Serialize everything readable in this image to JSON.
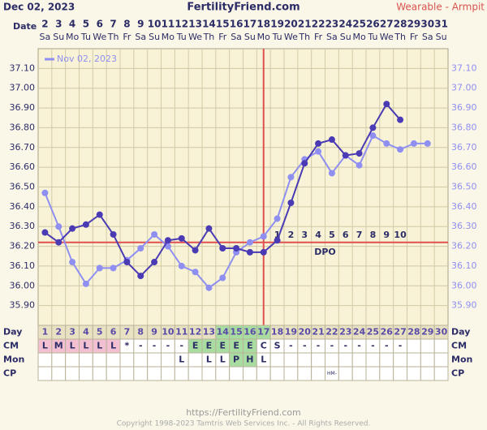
{
  "chart_data": {
    "type": "line",
    "title": "FertilityFriend.com",
    "date_label": "Dec 02, 2023",
    "method": "Wearable - Armpit",
    "x_label": "Date",
    "dates": [
      2,
      3,
      4,
      5,
      6,
      7,
      8,
      9,
      10,
      11,
      12,
      13,
      14,
      15,
      16,
      17,
      18,
      19,
      20,
      21,
      22,
      23,
      24,
      25,
      26,
      27,
      28,
      29,
      30,
      31
    ],
    "weekdays": [
      "Sa",
      "Su",
      "Mo",
      "Tu",
      "We",
      "Th",
      "Fr",
      "Sa",
      "Su",
      "Mo",
      "Tu",
      "We",
      "Th",
      "Fr",
      "Sa",
      "Su",
      "Mo",
      "Tu",
      "We",
      "Th",
      "Fr",
      "Sa",
      "Su",
      "Mo",
      "Tu",
      "We",
      "Th",
      "Fr",
      "Sa",
      "Su"
    ],
    "categories": [
      1,
      2,
      3,
      4,
      5,
      6,
      7,
      8,
      9,
      10,
      11,
      12,
      13,
      14,
      15,
      16,
      17,
      18,
      19,
      20,
      21,
      22,
      23,
      24,
      25,
      26,
      27,
      28,
      29,
      30
    ],
    "series": [
      {
        "color": "#4a3ab4",
        "values": [
          36.27,
          36.22,
          36.29,
          36.31,
          36.36,
          36.26,
          36.12,
          36.05,
          36.12,
          36.23,
          36.24,
          36.18,
          36.29,
          36.19,
          36.19,
          36.17,
          36.17,
          36.23,
          36.42,
          36.62,
          36.72,
          36.74,
          36.66,
          36.67,
          36.8,
          36.92,
          36.84,
          null,
          null,
          null
        ]
      },
      {
        "name": "Nov 02, 2023",
        "color": "#8f8ff2",
        "values": [
          36.47,
          36.3,
          36.12,
          36.01,
          36.09,
          36.09,
          36.13,
          36.19,
          36.26,
          36.2,
          36.1,
          36.07,
          35.99,
          36.04,
          36.17,
          36.22,
          36.25,
          36.34,
          36.55,
          36.64,
          36.68,
          36.57,
          36.66,
          36.61,
          36.76,
          36.72,
          36.69,
          36.72,
          36.72,
          null
        ]
      }
    ],
    "ylim": [
      35.8,
      37.2
    ],
    "yticks": [
      {
        "value": 35.9,
        "label": "35.90"
      },
      {
        "value": 36.0,
        "label": "36.00"
      },
      {
        "value": 36.1,
        "label": "36.10"
      },
      {
        "value": 36.2,
        "label": "36.20"
      },
      {
        "value": 36.3,
        "label": "36.30"
      },
      {
        "value": 36.4,
        "label": "36.40"
      },
      {
        "value": 36.5,
        "label": "36.50"
      },
      {
        "value": 36.6,
        "label": "36.60"
      },
      {
        "value": 36.7,
        "label": "36.70"
      },
      {
        "value": 36.8,
        "label": "36.80"
      },
      {
        "value": 36.9,
        "label": "36.90"
      },
      {
        "value": 37.0,
        "label": "37.00"
      },
      {
        "value": 37.1,
        "label": "37.10"
      }
    ],
    "grid": true,
    "coverline": 36.22,
    "coverline_color": "#e05050",
    "ovulation_day": 17,
    "dpo": [
      1,
      2,
      3,
      4,
      5,
      6,
      7,
      8,
      9,
      10
    ],
    "dpo_label": "DPO",
    "fertile_window": [
      14,
      17
    ],
    "rows": [
      {
        "label": "Day"
      },
      {
        "label": "CM",
        "values": [
          "L",
          "M",
          "L",
          "L",
          "L",
          "L",
          "*",
          "-",
          "-",
          "-",
          "-",
          "E",
          "E",
          "E",
          "E",
          "E",
          "C",
          "S",
          "-",
          "-",
          "-",
          "-",
          "-",
          "-",
          "-",
          "-",
          "-",
          null,
          null,
          null
        ],
        "colors": {
          "L": "#f2c0d0",
          "M": "#f2c0d0",
          "E": "#a9dca0"
        }
      },
      {
        "label": "Mon",
        "values": [
          null,
          null,
          null,
          null,
          null,
          null,
          null,
          null,
          null,
          null,
          "L",
          null,
          "L",
          "L",
          "P",
          "H",
          "L",
          null,
          null,
          null,
          null,
          null,
          null,
          null,
          null,
          null,
          null,
          null,
          null,
          null
        ],
        "colors": {
          "P": "#a9dca0",
          "H": "#a9dca0"
        }
      },
      {
        "label": "CP",
        "values": [
          null,
          null,
          null,
          null,
          null,
          null,
          null,
          null,
          null,
          null,
          null,
          null,
          null,
          null,
          null,
          null,
          null,
          null,
          null,
          null,
          null,
          "HM-",
          null,
          null,
          null,
          null,
          null,
          null,
          null,
          null
        ]
      }
    ]
  },
  "footer": {
    "url": "https://FertilityFriend.com",
    "copyright": "Copyright 1998-2023 Tamtris Web Services Inc. - All Rights Reserved."
  }
}
